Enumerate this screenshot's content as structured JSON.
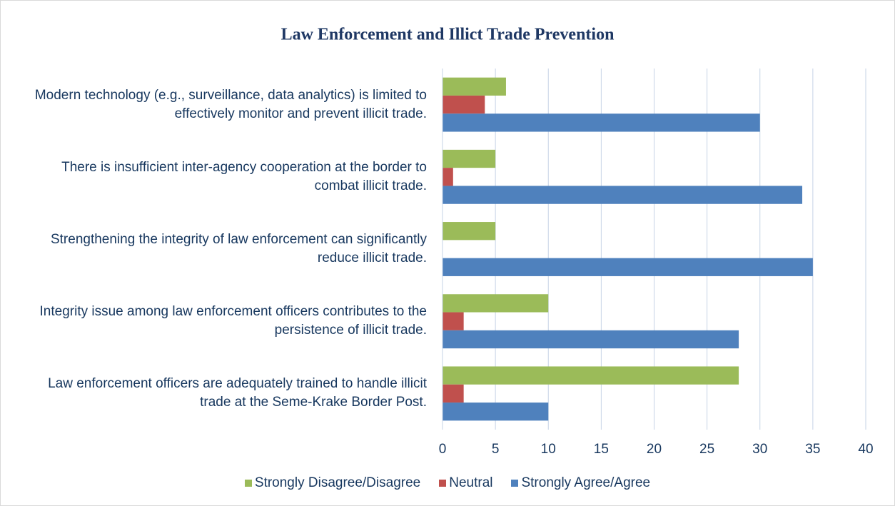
{
  "chart_data": {
    "type": "hbar",
    "title": "Law Enforcement and Illict Trade Prevention",
    "categories": [
      "Modern technology (e.g., surveillance, data analytics) is limited to effectively monitor and prevent illicit trade.",
      "There is insufficient inter-agency cooperation at the border to combat illicit trade.",
      "Strengthening the integrity of law enforcement can significantly reduce illicit trade.",
      "Integrity issue among law enforcement officers contributes to the persistence of illicit trade.",
      "Law enforcement officers are adequately trained to handle illicit trade at the Seme-Krake Border Post."
    ],
    "series": [
      {
        "name": "Strongly Disagree/Disagree",
        "color": "#9bbb59",
        "values": [
          6,
          5,
          5,
          10,
          28
        ]
      },
      {
        "name": "Neutral",
        "color": "#c0504d",
        "values": [
          4,
          1,
          0,
          2,
          2
        ]
      },
      {
        "name": "Strongly Agree/Agree",
        "color": "#4f81bd",
        "values": [
          30,
          34,
          35,
          28,
          10
        ]
      }
    ],
    "xlim": [
      0,
      40
    ],
    "xticks": [
      0,
      5,
      10,
      15,
      20,
      25,
      30,
      35,
      40
    ],
    "grid": true,
    "legend": "bottom"
  }
}
